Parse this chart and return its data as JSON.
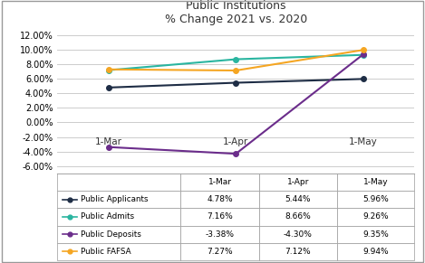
{
  "title": "Public Institutions\n% Change 2021 vs. 2020",
  "x_labels": [
    "1-Mar",
    "1-Apr",
    "1-May"
  ],
  "x_positions": [
    0,
    1,
    2
  ],
  "series": [
    {
      "name": "Public Applicants",
      "values": [
        4.78,
        5.44,
        5.96
      ],
      "color": "#1e2d45",
      "marker": "o"
    },
    {
      "name": "Public Admits",
      "values": [
        7.16,
        8.66,
        9.26
      ],
      "color": "#2ab5a0",
      "marker": "o"
    },
    {
      "name": "Public Deposits",
      "values": [
        -3.38,
        -4.3,
        9.35
      ],
      "color": "#6b2d8b",
      "marker": "o"
    },
    {
      "name": "Public FAFSA",
      "values": [
        7.27,
        7.12,
        9.94
      ],
      "color": "#f5a623",
      "marker": "o"
    }
  ],
  "table_headers": [
    "",
    "1-Mar",
    "1-Apr",
    "1-May"
  ],
  "table_rows": [
    [
      "Public Applicants",
      "4.78%",
      "5.44%",
      "5.96%"
    ],
    [
      "Public Admits",
      "7.16%",
      "8.66%",
      "9.26%"
    ],
    [
      "Public Deposits",
      "-3.38%",
      "-4.30%",
      "9.35%"
    ],
    [
      "Public FAFSA",
      "7.27%",
      "7.12%",
      "9.94%"
    ]
  ],
  "table_row_colors": [
    "#1e2d45",
    "#2ab5a0",
    "#6b2d8b",
    "#f5a623"
  ],
  "ylim": [
    -7.0,
    13.0
  ],
  "yticks": [
    -6,
    -4,
    -2,
    0,
    2,
    4,
    6,
    8,
    10,
    12
  ],
  "ytick_labels": [
    "-6.00%",
    "-4.00%",
    "-2.00%",
    "0.00%",
    "2.00%",
    "4.00%",
    "6.00%",
    "8.00%",
    "10.00%",
    "12.00%"
  ],
  "background_color": "#ffffff",
  "grid_color": "#cccccc",
  "border_color": "#999999",
  "title_fontsize": 9,
  "tick_fontsize": 7,
  "table_fontsize": 6.5
}
